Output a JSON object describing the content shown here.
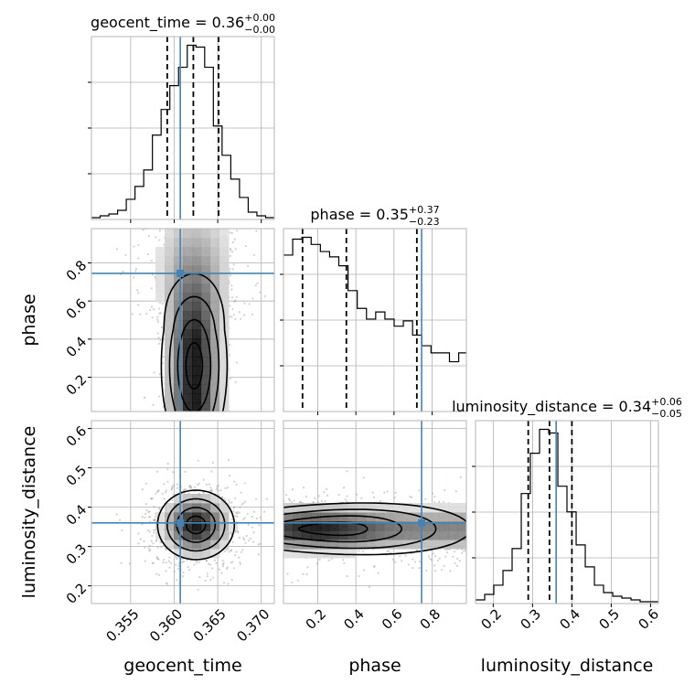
{
  "chart_data": {
    "type": "corner",
    "parameters": [
      "geocent_time",
      "phase",
      "luminosity_distance"
    ],
    "truth": {
      "geocent_time": 0.3607,
      "phase": 0.745,
      "luminosity_distance": 0.36
    },
    "colors": {
      "truth": "#4682b4",
      "hist": "#000000",
      "grid": "#b0b0b0",
      "frame": "#b5b5b5"
    },
    "marginals": [
      {
        "param": "geocent_time",
        "title_main": "geocent_time = 0.36",
        "title_plus": "+0.00",
        "title_minus": "−0.00",
        "range": [
          0.3505,
          0.3715
        ],
        "ticks": [
          0.355,
          0.36,
          0.365,
          0.37
        ],
        "tick_labels": [
          "0.355",
          "0.360",
          "0.365",
          "0.370"
        ],
        "quantiles": [
          0.3592,
          0.3622,
          0.3651
        ],
        "bin_edges": [
          0.3505,
          0.3515,
          0.3525,
          0.3535,
          0.3545,
          0.3555,
          0.3565,
          0.3575,
          0.3585,
          0.3595,
          0.3605,
          0.3615,
          0.3625,
          0.3635,
          0.3645,
          0.3655,
          0.3665,
          0.3675,
          0.3685,
          0.3695,
          0.3705,
          0.3715
        ],
        "counts": [
          0.01,
          0.02,
          0.03,
          0.05,
          0.11,
          0.18,
          0.27,
          0.46,
          0.6,
          0.73,
          0.83,
          0.95,
          0.94,
          0.83,
          0.51,
          0.35,
          0.22,
          0.12,
          0.04,
          0.02,
          0.01
        ]
      },
      {
        "param": "phase",
        "title_main": "phase = 0.35",
        "title_plus": "+0.37",
        "title_minus": "−0.23",
        "range": [
          0.02,
          0.98
        ],
        "ticks": [
          0.2,
          0.4,
          0.6,
          0.8
        ],
        "tick_labels": [
          "0.2",
          "0.4",
          "0.6",
          "0.8"
        ],
        "quantiles": [
          0.12,
          0.35,
          0.72
        ],
        "bin_edges": [
          0.02,
          0.0684,
          0.1168,
          0.1652,
          0.2136,
          0.262,
          0.3104,
          0.3588,
          0.4072,
          0.4556,
          0.504,
          0.5524,
          0.6008,
          0.6492,
          0.6976,
          0.746,
          0.7944,
          0.8428,
          0.8912,
          0.9396,
          0.98
        ],
        "counts": [
          0.88,
          0.97,
          0.98,
          0.94,
          0.9,
          0.87,
          0.82,
          0.68,
          0.58,
          0.52,
          0.56,
          0.52,
          0.48,
          0.51,
          0.43,
          0.37,
          0.33,
          0.33,
          0.28,
          0.33
        ]
      },
      {
        "param": "luminosity_distance",
        "title_main": "luminosity_distance = 0.34",
        "title_plus": "+0.06",
        "title_minus": "−0.05",
        "range": [
          0.155,
          0.62
        ],
        "ticks": [
          0.2,
          0.3,
          0.4,
          0.5,
          0.6
        ],
        "tick_labels": [
          "0.2",
          "0.3",
          "0.4",
          "0.5",
          "0.6"
        ],
        "quantiles": [
          0.289,
          0.343,
          0.4
        ],
        "bin_edges": [
          0.155,
          0.1783,
          0.2015,
          0.2248,
          0.248,
          0.2713,
          0.2945,
          0.3178,
          0.341,
          0.3643,
          0.3875,
          0.4108,
          0.434,
          0.4573,
          0.4805,
          0.5038,
          0.527,
          0.5503,
          0.5735,
          0.5968,
          0.62
        ],
        "counts": [
          0.02,
          0.05,
          0.1,
          0.18,
          0.3,
          0.6,
          0.82,
          0.95,
          0.93,
          0.64,
          0.5,
          0.32,
          0.2,
          0.1,
          0.06,
          0.04,
          0.03,
          0.02,
          0.01,
          0.01
        ]
      }
    ],
    "joints": [
      {
        "x": "geocent_time",
        "y": "phase",
        "center": [
          0.3623,
          0.26
        ],
        "sigma": [
          0.0018,
          0.22
        ],
        "contour_levels": [
          0.5,
          1.0,
          1.5,
          2.0
        ]
      },
      {
        "x": "geocent_time",
        "y": "luminosity_distance",
        "center": [
          0.3625,
          0.355
        ],
        "sigma": [
          0.0021,
          0.042
        ],
        "contour_levels": [
          0.5,
          1.0,
          1.5,
          2.0
        ]
      },
      {
        "x": "phase",
        "y": "luminosity_distance",
        "center": [
          0.28,
          0.345
        ],
        "sigma": [
          0.3,
          0.032
        ],
        "contour_levels": [
          0.5,
          1.0,
          1.5,
          2.0
        ]
      }
    ],
    "xlabels": [
      "geocent_time",
      "phase",
      "luminosity_distance"
    ],
    "ylabels": [
      "",
      "phase",
      "luminosity_distance"
    ],
    "grid": true
  }
}
